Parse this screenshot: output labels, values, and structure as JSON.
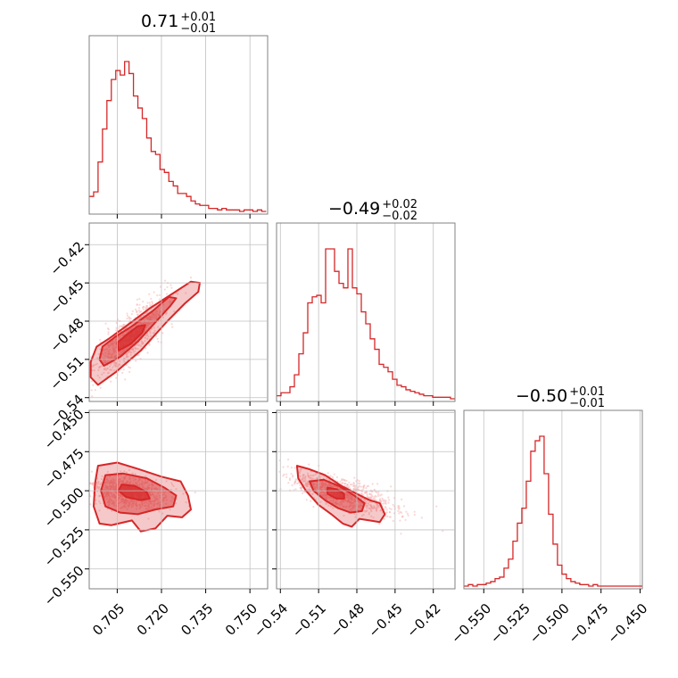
{
  "chart_data": {
    "type": "corner",
    "color": "#d62728",
    "fill_color": "#f4a0a0",
    "point_color": "#f6b8b8",
    "grid": true,
    "parameters": [
      {
        "title_value": "0.71",
        "title_plus": "+0.01",
        "title_minus": "−0.01",
        "range": [
          0.6955,
          0.756
        ],
        "ticks": [
          0.705,
          0.72,
          0.735,
          0.75
        ],
        "tick_labels": [
          "0.705",
          "0.720",
          "0.735",
          "0.750"
        ],
        "hist": {
          "edges_start": 0.6955,
          "edges_step": 0.0015,
          "counts": [
            10,
            13,
            33,
            55,
            74,
            88,
            94,
            91,
            100,
            92,
            77,
            69,
            62,
            49,
            40,
            38,
            28,
            26,
            20,
            17,
            12,
            12,
            10,
            7,
            5,
            4,
            4,
            2,
            2,
            1,
            2,
            1,
            1,
            1,
            0,
            1,
            1,
            0,
            1,
            0
          ]
        }
      },
      {
        "title_value": "−0.49",
        "title_plus": "+0.02",
        "title_minus": "−0.02",
        "range": [
          -0.543,
          -0.403
        ],
        "ticks": [
          -0.54,
          -0.51,
          -0.48,
          -0.45,
          -0.42
        ],
        "tick_labels": [
          "−0.54",
          "−0.51",
          "−0.48",
          "−0.45",
          "−0.42"
        ],
        "hist": {
          "edges_start": -0.543,
          "edges_step": 0.0035,
          "counts": [
            2,
            4,
            4,
            8,
            16,
            30,
            44,
            64,
            68,
            69,
            64,
            100,
            100,
            85,
            77,
            74,
            100,
            74,
            70,
            58,
            50,
            40,
            33,
            23,
            21,
            18,
            13,
            9,
            8,
            6,
            5,
            4,
            3,
            2,
            2,
            1,
            1,
            1,
            1,
            0
          ]
        }
      },
      {
        "title_value": "−0.50",
        "title_plus": "+0.01",
        "title_minus": "−0.01",
        "range": [
          -0.5627,
          -0.4486
        ],
        "ticks": [
          -0.55,
          -0.525,
          -0.5,
          -0.475,
          -0.45
        ],
        "tick_labels": [
          "−0.550",
          "−0.525",
          "−0.500",
          "−0.475",
          "−0.450"
        ],
        "hist": {
          "edges_start": -0.5627,
          "edges_step": 0.00285,
          "counts": [
            0,
            1,
            0,
            1,
            1,
            2,
            3,
            5,
            6,
            12,
            18,
            30,
            42,
            52,
            70,
            90,
            97,
            100,
            75,
            48,
            28,
            14,
            8,
            5,
            3,
            2,
            1,
            1,
            0,
            1,
            0,
            0,
            0,
            0,
            0,
            0,
            0,
            0,
            0,
            0
          ]
        }
      }
    ],
    "pairs": [
      {
        "row": 1,
        "col": 0,
        "slope": 2.05,
        "sd_x": 0.0055,
        "sd_y": 0.018,
        "center": [
          0.7085,
          -0.495
        ],
        "contours": [
          {
            "level": "outer",
            "points": [
              [
                0.6985,
                -0.53
              ],
              [
                0.7045,
                -0.52
              ],
              [
                0.713,
                -0.503
              ],
              [
                0.722,
                -0.48
              ],
              [
                0.728,
                -0.466
              ],
              [
                0.7325,
                -0.457
              ],
              [
                0.733,
                -0.45
              ],
              [
                0.73,
                -0.449
              ],
              [
                0.724,
                -0.458
              ],
              [
                0.716,
                -0.47
              ],
              [
                0.708,
                -0.484
              ],
              [
                0.702,
                -0.494
              ],
              [
                0.698,
                -0.5
              ],
              [
                0.696,
                -0.512
              ],
              [
                0.696,
                -0.524
              ]
            ]
          },
          {
            "level": "mid",
            "points": [
              [
                0.7005,
                -0.515
              ],
              [
                0.706,
                -0.508
              ],
              [
                0.712,
                -0.496
              ],
              [
                0.7175,
                -0.482
              ],
              [
                0.723,
                -0.468
              ],
              [
                0.725,
                -0.462
              ],
              [
                0.7225,
                -0.461
              ],
              [
                0.717,
                -0.472
              ],
              [
                0.71,
                -0.484
              ],
              [
                0.7045,
                -0.492
              ],
              [
                0.7,
                -0.5
              ],
              [
                0.699,
                -0.51
              ]
            ]
          },
          {
            "level": "inner",
            "points": [
              [
                0.7055,
                -0.503
              ],
              [
                0.7095,
                -0.498
              ],
              [
                0.7135,
                -0.489
              ],
              [
                0.7145,
                -0.483
              ],
              [
                0.712,
                -0.484
              ],
              [
                0.708,
                -0.491
              ],
              [
                0.705,
                -0.497
              ]
            ]
          }
        ]
      },
      {
        "row": 2,
        "col": 0,
        "slope": -0.18,
        "sd_x": 0.006,
        "sd_y": 0.01,
        "center": [
          0.7085,
          -0.501
        ],
        "contours": [
          {
            "level": "outer",
            "points": [
              [
                0.6985,
                -0.484
              ],
              [
                0.705,
                -0.482
              ],
              [
                0.712,
                -0.486
              ],
              [
                0.72,
                -0.491
              ],
              [
                0.7265,
                -0.494
              ],
              [
                0.729,
                -0.503
              ],
              [
                0.73,
                -0.512
              ],
              [
                0.727,
                -0.517
              ],
              [
                0.722,
                -0.516
              ],
              [
                0.718,
                -0.524
              ],
              [
                0.713,
                -0.526
              ],
              [
                0.71,
                -0.519
              ],
              [
                0.703,
                -0.522
              ],
              [
                0.699,
                -0.521
              ],
              [
                0.697,
                -0.51
              ],
              [
                0.6975,
                -0.495
              ]
            ]
          },
          {
            "level": "mid",
            "points": [
              [
                0.701,
                -0.49
              ],
              [
                0.707,
                -0.489
              ],
              [
                0.715,
                -0.492
              ],
              [
                0.721,
                -0.498
              ],
              [
                0.725,
                -0.503
              ],
              [
                0.724,
                -0.51
              ],
              [
                0.718,
                -0.512
              ],
              [
                0.712,
                -0.515
              ],
              [
                0.706,
                -0.514
              ],
              [
                0.701,
                -0.51
              ],
              [
                0.6995,
                -0.5
              ]
            ]
          },
          {
            "level": "inner",
            "points": [
              [
                0.7065,
                -0.496
              ],
              [
                0.711,
                -0.497
              ],
              [
                0.715,
                -0.501
              ],
              [
                0.716,
                -0.505
              ],
              [
                0.713,
                -0.506
              ],
              [
                0.708,
                -0.504
              ],
              [
                0.7055,
                -0.5
              ]
            ]
          }
        ]
      },
      {
        "row": 2,
        "col": 1,
        "slope": -0.25,
        "sd_x": 0.019,
        "sd_y": 0.0095,
        "center": [
          -0.494,
          -0.501
        ],
        "contours": [
          {
            "level": "outer",
            "points": [
              [
                -0.527,
                -0.484
              ],
              [
                -0.518,
                -0.486
              ],
              [
                -0.505,
                -0.49
              ],
              [
                -0.492,
                -0.497
              ],
              [
                -0.48,
                -0.502
              ],
              [
                -0.47,
                -0.506
              ],
              [
                -0.462,
                -0.508
              ],
              [
                -0.458,
                -0.515
              ],
              [
                -0.462,
                -0.52
              ],
              [
                -0.47,
                -0.519
              ],
              [
                -0.478,
                -0.518
              ],
              [
                -0.484,
                -0.523
              ],
              [
                -0.491,
                -0.521
              ],
              [
                -0.5,
                -0.515
              ],
              [
                -0.51,
                -0.509
              ],
              [
                -0.52,
                -0.5
              ],
              [
                -0.526,
                -0.492
              ]
            ]
          },
          {
            "level": "mid",
            "points": [
              [
                -0.517,
                -0.494
              ],
              [
                -0.506,
                -0.493
              ],
              [
                -0.494,
                -0.497
              ],
              [
                -0.482,
                -0.503
              ],
              [
                -0.474,
                -0.508
              ],
              [
                -0.476,
                -0.513
              ],
              [
                -0.485,
                -0.514
              ],
              [
                -0.495,
                -0.511
              ],
              [
                -0.505,
                -0.506
              ],
              [
                -0.514,
                -0.5
              ]
            ]
          },
          {
            "level": "inner",
            "points": [
              [
                -0.503,
                -0.498
              ],
              [
                -0.496,
                -0.499
              ],
              [
                -0.49,
                -0.502
              ],
              [
                -0.49,
                -0.505
              ],
              [
                -0.496,
                -0.505
              ],
              [
                -0.503,
                -0.502
              ]
            ]
          }
        ]
      }
    ]
  }
}
